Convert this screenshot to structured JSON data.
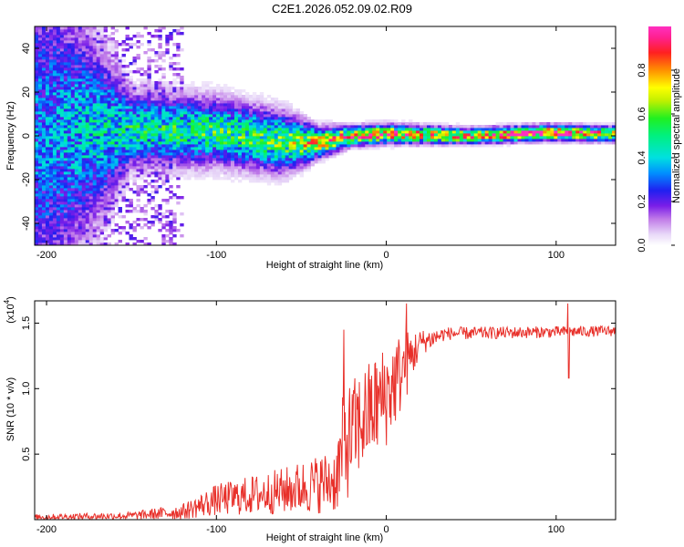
{
  "title": "C2E1.2026.052.09.02.R09",
  "chart_data": [
    {
      "type": "heatmap",
      "name": "spectrogram",
      "xlabel": "Height of straight line (km)",
      "ylabel": "Frequency (Hz)",
      "xlim": [
        -207,
        135
      ],
      "ylim": [
        -50,
        50
      ],
      "xticks": [
        -200,
        -100,
        0,
        100
      ],
      "yticks": [
        -40,
        -20,
        0,
        20,
        40
      ],
      "colorbar": {
        "label": "Normalized spectral amplitude",
        "range": [
          0,
          1
        ],
        "ticks": [
          0.0,
          0.2,
          0.4,
          0.6,
          0.8
        ]
      },
      "ridge": [
        {
          "x": -207,
          "center": 0,
          "spread": 50,
          "amp": 0.3
        },
        {
          "x": -150,
          "center": 3,
          "spread": 10,
          "amp": 0.45
        },
        {
          "x": -100,
          "center": 2,
          "spread": 9,
          "amp": 0.5
        },
        {
          "x": -60,
          "center": -3,
          "spread": 8,
          "amp": 0.55
        },
        {
          "x": -40,
          "center": -3,
          "spread": 4,
          "amp": 0.7
        },
        {
          "x": -20,
          "center": 0,
          "spread": 2.5,
          "amp": 0.85
        },
        {
          "x": 0,
          "center": 1,
          "spread": 2.5,
          "amp": 0.8
        },
        {
          "x": 50,
          "center": 0,
          "spread": 2,
          "amp": 0.75
        },
        {
          "x": 95,
          "center": 1.5,
          "spread": 2,
          "amp": 0.9
        },
        {
          "x": 135,
          "center": 1,
          "spread": 2,
          "amp": 0.7
        }
      ]
    },
    {
      "type": "line",
      "name": "snr",
      "xlabel": "Height of straight line (km)",
      "ylabel": "SNR (10 * v/v)",
      "yscale_label": "(x10",
      "yscale_exp": "4",
      "xlim": [
        -207,
        135
      ],
      "ylim": [
        0,
        1.67
      ],
      "xticks": [
        -200,
        -100,
        0,
        100
      ],
      "yticks": [
        0.5,
        1.0,
        1.5
      ],
      "ytick_labels": [
        "0.5",
        "1.0",
        "1.5"
      ],
      "color": "#e8302a",
      "envelope": [
        {
          "x": -207,
          "base": 0.02,
          "noise": 0.02
        },
        {
          "x": -150,
          "base": 0.03,
          "noise": 0.03
        },
        {
          "x": -120,
          "base": 0.06,
          "noise": 0.06
        },
        {
          "x": -100,
          "base": 0.15,
          "noise": 0.12
        },
        {
          "x": -60,
          "base": 0.22,
          "noise": 0.18
        },
        {
          "x": -30,
          "base": 0.3,
          "noise": 0.25
        },
        {
          "x": -25,
          "base": 0.55,
          "noise": 0.45
        },
        {
          "x": -15,
          "base": 0.75,
          "noise": 0.4
        },
        {
          "x": 0,
          "base": 0.95,
          "noise": 0.4
        },
        {
          "x": 10,
          "base": 1.15,
          "noise": 0.3
        },
        {
          "x": 20,
          "base": 1.35,
          "noise": 0.1
        },
        {
          "x": 35,
          "base": 1.42,
          "noise": 0.05
        },
        {
          "x": 135,
          "base": 1.44,
          "noise": 0.04
        }
      ],
      "spikes": [
        {
          "x": 12,
          "y": 1.65
        },
        {
          "x": 107,
          "y": 1.65
        },
        {
          "x": 107.5,
          "y": 1.08
        },
        {
          "x": -25,
          "y": 1.45
        }
      ]
    }
  ]
}
